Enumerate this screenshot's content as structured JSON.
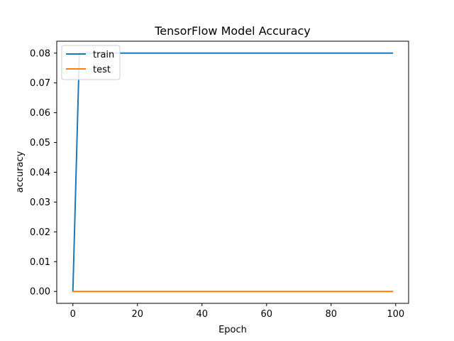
{
  "chart_data": {
    "type": "line",
    "title": "TensorFlow Model Accuracy",
    "xlabel": "Epoch",
    "ylabel": "accuracy",
    "xlim": [
      -5,
      104
    ],
    "ylim": [
      -0.004,
      0.084
    ],
    "xticks": [
      0,
      20,
      40,
      60,
      80,
      100
    ],
    "xtick_labels": [
      "0",
      "20",
      "40",
      "60",
      "80",
      "100"
    ],
    "yticks": [
      0.0,
      0.01,
      0.02,
      0.03,
      0.04,
      0.05,
      0.06,
      0.07,
      0.08
    ],
    "ytick_labels": [
      "0.00",
      "0.01",
      "0.02",
      "0.03",
      "0.04",
      "0.05",
      "0.06",
      "0.07",
      "0.08"
    ],
    "grid": false,
    "legend": {
      "position": "top-left",
      "entries": [
        "train",
        "test"
      ]
    },
    "series": [
      {
        "name": "train",
        "color": "#1f77b4",
        "x": [
          0,
          1,
          2,
          3,
          4,
          5,
          6,
          7,
          8,
          9,
          10,
          11,
          12,
          13,
          14,
          15,
          16,
          17,
          18,
          19,
          20,
          21,
          22,
          23,
          24,
          25,
          26,
          27,
          28,
          29,
          30,
          31,
          32,
          33,
          34,
          35,
          36,
          37,
          38,
          39,
          40,
          41,
          42,
          43,
          44,
          45,
          46,
          47,
          48,
          49,
          50,
          51,
          52,
          53,
          54,
          55,
          56,
          57,
          58,
          59,
          60,
          61,
          62,
          63,
          64,
          65,
          66,
          67,
          68,
          69,
          70,
          71,
          72,
          73,
          74,
          75,
          76,
          77,
          78,
          79,
          80,
          81,
          82,
          83,
          84,
          85,
          86,
          87,
          88,
          89,
          90,
          91,
          92,
          93,
          94,
          95,
          96,
          97,
          98,
          99
        ],
        "y": [
          0.0,
          0.04,
          0.08,
          0.08,
          0.08,
          0.08,
          0.08,
          0.08,
          0.08,
          0.08,
          0.08,
          0.08,
          0.08,
          0.08,
          0.08,
          0.08,
          0.08,
          0.08,
          0.08,
          0.08,
          0.08,
          0.08,
          0.08,
          0.08,
          0.08,
          0.08,
          0.08,
          0.08,
          0.08,
          0.08,
          0.08,
          0.08,
          0.08,
          0.08,
          0.08,
          0.08,
          0.08,
          0.08,
          0.08,
          0.08,
          0.08,
          0.08,
          0.08,
          0.08,
          0.08,
          0.08,
          0.08,
          0.08,
          0.08,
          0.08,
          0.08,
          0.08,
          0.08,
          0.08,
          0.08,
          0.08,
          0.08,
          0.08,
          0.08,
          0.08,
          0.08,
          0.08,
          0.08,
          0.08,
          0.08,
          0.08,
          0.08,
          0.08,
          0.08,
          0.08,
          0.08,
          0.08,
          0.08,
          0.08,
          0.08,
          0.08,
          0.08,
          0.08,
          0.08,
          0.08,
          0.08,
          0.08,
          0.08,
          0.08,
          0.08,
          0.08,
          0.08,
          0.08,
          0.08,
          0.08,
          0.08,
          0.08,
          0.08,
          0.08,
          0.08,
          0.08,
          0.08,
          0.08,
          0.08,
          0.08
        ]
      },
      {
        "name": "test",
        "color": "#ff7f0e",
        "x": [
          0,
          1,
          2,
          3,
          4,
          5,
          6,
          7,
          8,
          9,
          10,
          11,
          12,
          13,
          14,
          15,
          16,
          17,
          18,
          19,
          20,
          21,
          22,
          23,
          24,
          25,
          26,
          27,
          28,
          29,
          30,
          31,
          32,
          33,
          34,
          35,
          36,
          37,
          38,
          39,
          40,
          41,
          42,
          43,
          44,
          45,
          46,
          47,
          48,
          49,
          50,
          51,
          52,
          53,
          54,
          55,
          56,
          57,
          58,
          59,
          60,
          61,
          62,
          63,
          64,
          65,
          66,
          67,
          68,
          69,
          70,
          71,
          72,
          73,
          74,
          75,
          76,
          77,
          78,
          79,
          80,
          81,
          82,
          83,
          84,
          85,
          86,
          87,
          88,
          89,
          90,
          91,
          92,
          93,
          94,
          95,
          96,
          97,
          98,
          99
        ],
        "y": [
          0.0,
          0.0,
          0.0,
          0.0,
          0.0,
          0.0,
          0.0,
          0.0,
          0.0,
          0.0,
          0.0,
          0.0,
          0.0,
          0.0,
          0.0,
          0.0,
          0.0,
          0.0,
          0.0,
          0.0,
          0.0,
          0.0,
          0.0,
          0.0,
          0.0,
          0.0,
          0.0,
          0.0,
          0.0,
          0.0,
          0.0,
          0.0,
          0.0,
          0.0,
          0.0,
          0.0,
          0.0,
          0.0,
          0.0,
          0.0,
          0.0,
          0.0,
          0.0,
          0.0,
          0.0,
          0.0,
          0.0,
          0.0,
          0.0,
          0.0,
          0.0,
          0.0,
          0.0,
          0.0,
          0.0,
          0.0,
          0.0,
          0.0,
          0.0,
          0.0,
          0.0,
          0.0,
          0.0,
          0.0,
          0.0,
          0.0,
          0.0,
          0.0,
          0.0,
          0.0,
          0.0,
          0.0,
          0.0,
          0.0,
          0.0,
          0.0,
          0.0,
          0.0,
          0.0,
          0.0,
          0.0,
          0.0,
          0.0,
          0.0,
          0.0,
          0.0,
          0.0,
          0.0,
          0.0,
          0.0,
          0.0,
          0.0,
          0.0,
          0.0,
          0.0,
          0.0,
          0.0,
          0.0,
          0.0,
          0.0
        ]
      }
    ]
  }
}
